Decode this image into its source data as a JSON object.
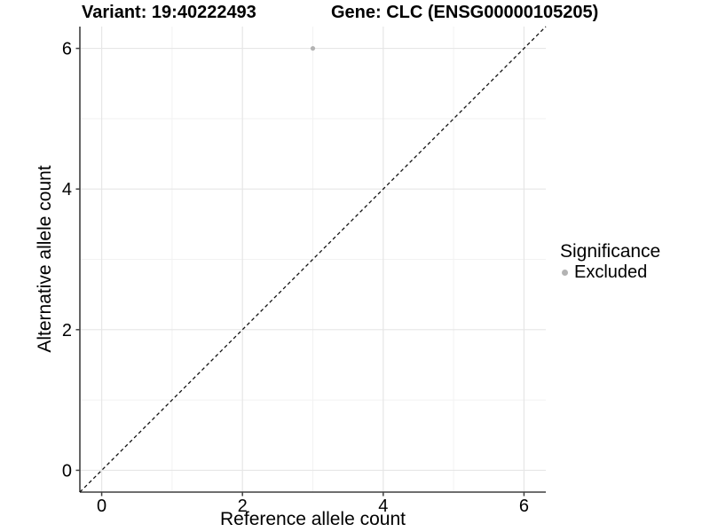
{
  "chart_data": {
    "type": "scatter",
    "title_left": "Variant: 19:40222493",
    "title_right": "Gene: CLC (ENSG00000105205)",
    "xlabel": "Reference allele count",
    "ylabel": "Alternative allele count",
    "xlim": [
      -0.31,
      6.31
    ],
    "ylim": [
      -0.31,
      6.31
    ],
    "x_ticks": [
      0,
      2,
      4,
      6
    ],
    "y_ticks": [
      0,
      2,
      4,
      6
    ],
    "x_minor_ticks": [
      1,
      3,
      5
    ],
    "y_minor_ticks": [
      1,
      3,
      5
    ],
    "grid": "major+minor",
    "identity_line": {
      "equation": "y = x",
      "style": "dashed",
      "color": "#111111"
    },
    "legend": {
      "title": "Significance",
      "position": "right",
      "items": [
        {
          "label": "Excluded",
          "color": "#b3b3b3"
        }
      ]
    },
    "series": [
      {
        "name": "Excluded",
        "color": "#b3b3b3",
        "points": [
          {
            "x": 3,
            "y": 6
          }
        ]
      }
    ],
    "style": {
      "grid_major_color": "#e6e6e6",
      "grid_minor_color": "#f2f2f2",
      "axis_color": "#3f3f3f",
      "background": "#ffffff"
    }
  }
}
